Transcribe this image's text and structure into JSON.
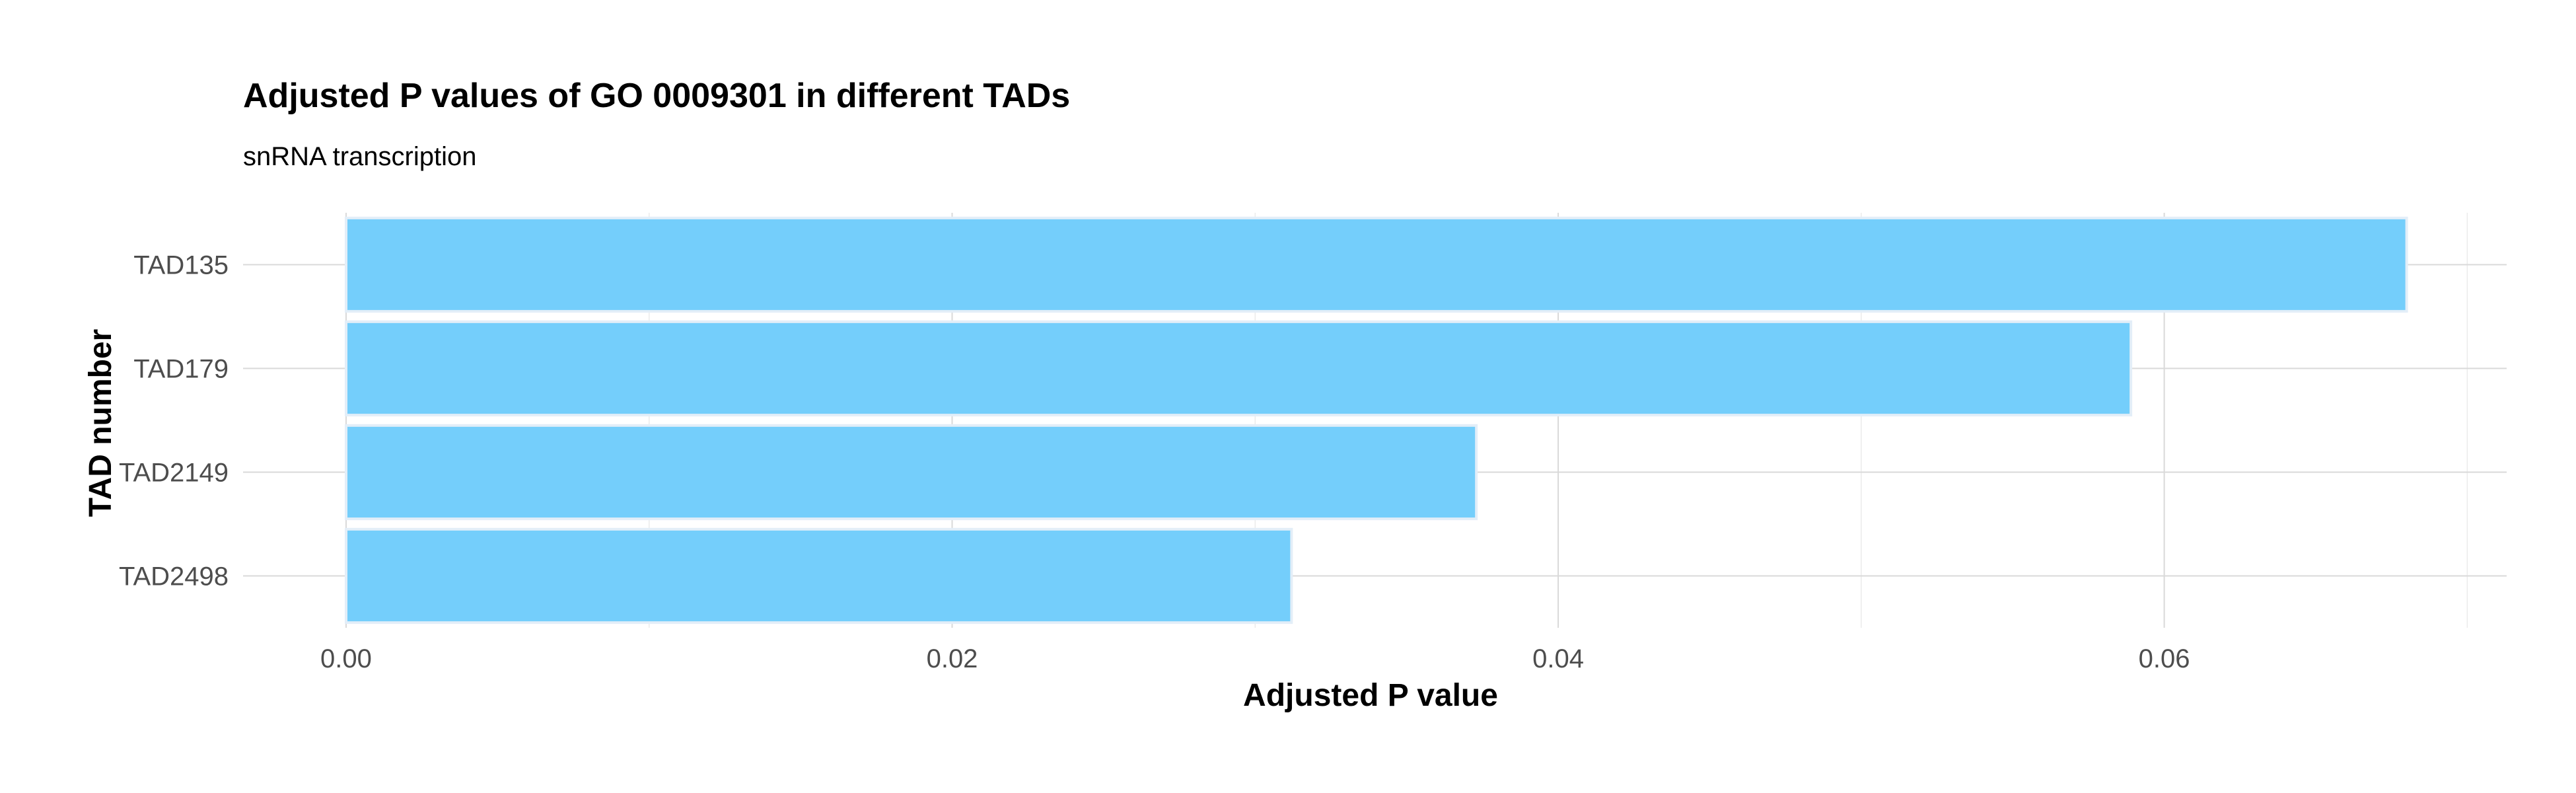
{
  "chart_data": {
    "type": "bar",
    "orientation": "horizontal",
    "title": "Adjusted P values of GO 0009301 in different TADs",
    "subtitle": "snRNA transcription",
    "xlabel": "Adjusted P value",
    "ylabel": "TAD number",
    "categories": [
      "TAD135",
      "TAD179",
      "TAD2149",
      "TAD2498"
    ],
    "values": [
      0.068,
      0.0589,
      0.0373,
      0.0312
    ],
    "xlim": [
      -0.0034,
      0.0713
    ],
    "x_ticks": [
      0.0,
      0.02,
      0.04,
      0.06
    ],
    "x_tick_labels": [
      "0.00",
      "0.02",
      "0.04",
      "0.06"
    ],
    "grid": true,
    "bar_color": "#74cefb",
    "bar_outline_color": "#e3eef8",
    "text_color": "#000000",
    "tick_label_color": "#4d4d4d"
  }
}
